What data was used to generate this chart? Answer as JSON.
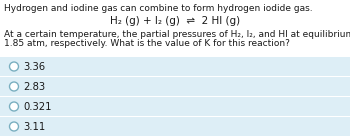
{
  "title_line1": "Hydrogen and iodine gas can combine to form hydrogen iodide gas.",
  "equation": "H₂ (g) + I₂ (g)  ⇌  2 HI (g)",
  "body_text_1": "At a certain temperature, the partial pressures of H₂, I₂, and HI at equilibrium are 1.10 atm, 1.00 atm,",
  "body_text_2": "1.85 atm, respectively. What is the value of K for this reaction?",
  "choices": [
    "3.36",
    "2.83",
    "0.321",
    "3.11"
  ],
  "bg_color": "#ffffff",
  "choice_bg": "#ddeef6",
  "text_color": "#1a1a1a",
  "circle_color": "#7aafc0",
  "font_size_title": 6.5,
  "font_size_eq": 7.5,
  "font_size_body": 6.5,
  "font_size_choice": 7.2
}
